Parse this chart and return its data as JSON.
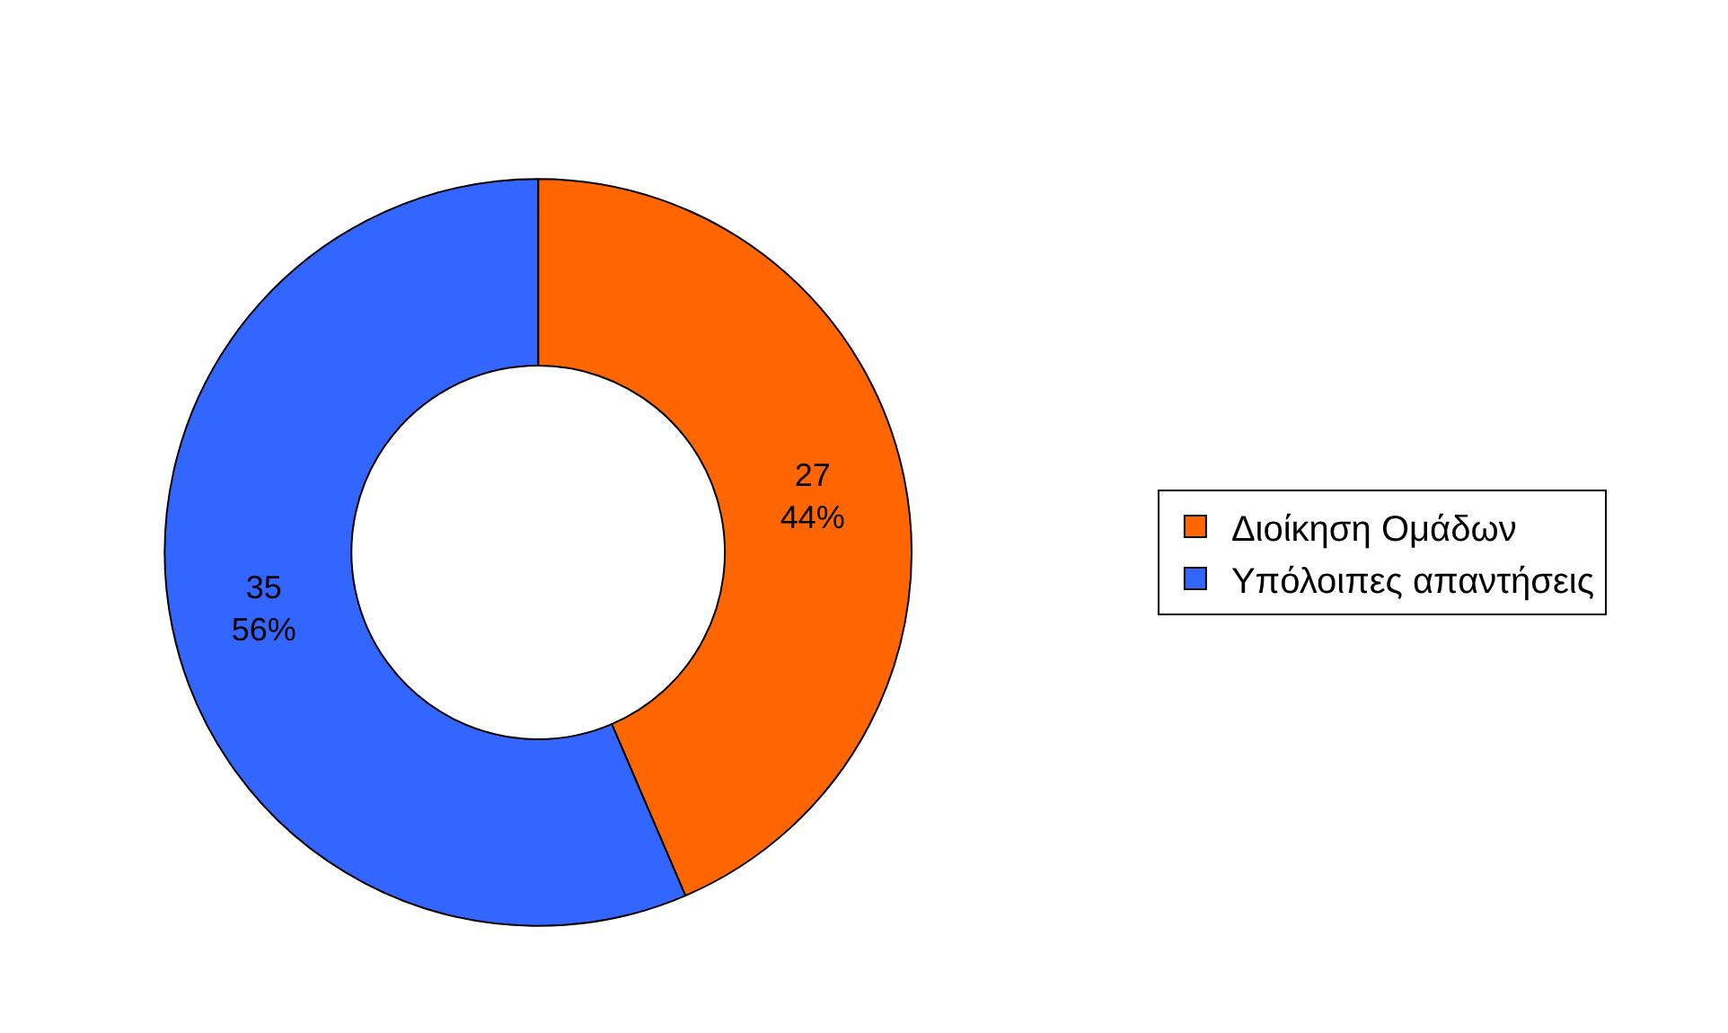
{
  "chart_data": {
    "type": "donut",
    "categories": [
      "Διοίκηση Ομάδων",
      "Υπόλοιπες απαντήσεις"
    ],
    "values": [
      27,
      35
    ],
    "colors": [
      "#ff6600",
      "#3366ff"
    ],
    "value_labels": [
      "27\n44%",
      "35\n56%"
    ],
    "legend": "right"
  }
}
